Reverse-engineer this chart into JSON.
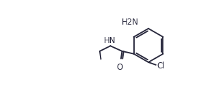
{
  "background_color": "#ffffff",
  "bond_color": "#2a2a3e",
  "lw": 1.4,
  "figsize": [
    3.1,
    1.36
  ],
  "dpi": 100,
  "nh2_label": "H2N",
  "cl_label": "Cl",
  "nh_label": "HN",
  "o_label": "O",
  "font_size": 8.5
}
